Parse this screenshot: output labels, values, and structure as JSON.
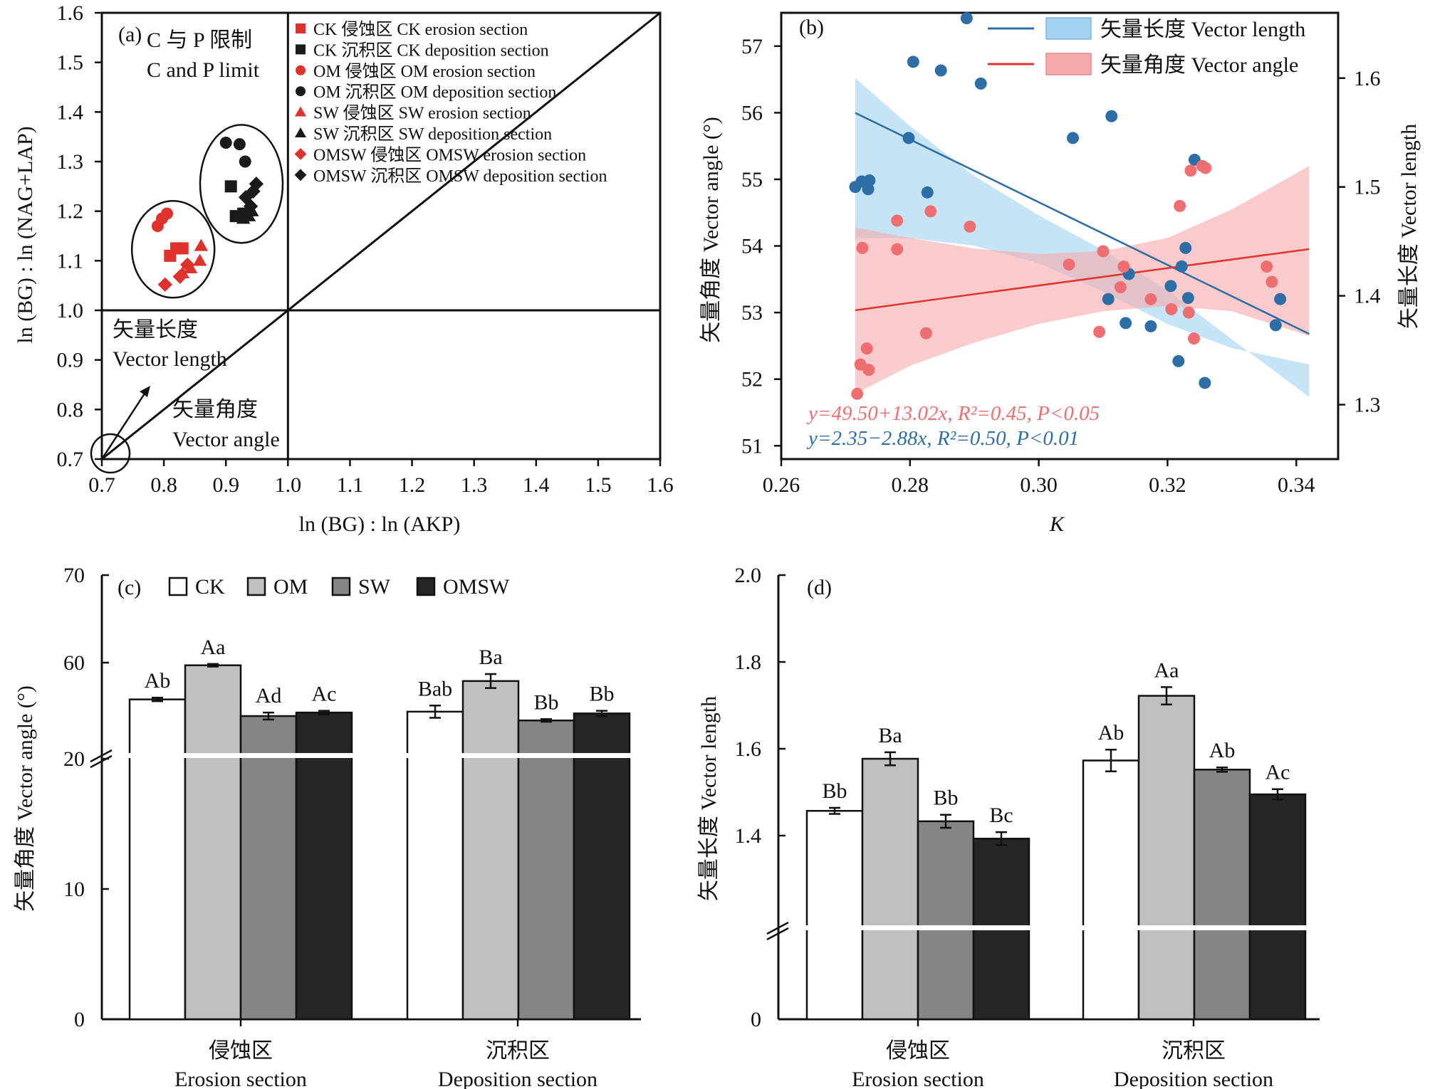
{
  "panels": [
    {
      "id": "a",
      "label": "(a)",
      "xlabel": "ln (BG) : ln (AKP)",
      "ylabel": "ln (BG) : ln (NAG+LAP)",
      "region_text": [
        "C 与 P 限制",
        "C and P limit"
      ],
      "annotations": {
        "vector_length": [
          "矢量长度",
          "Vector length"
        ],
        "vector_angle": [
          "矢量角度",
          "Vector angle"
        ]
      }
    },
    {
      "id": "b",
      "label": "(b)",
      "xlabel": "K",
      "ylabel_left": "矢量角度 Vector angle (°)",
      "ylabel_right": "矢量长度 Vector length"
    },
    {
      "id": "c",
      "label": "(c)",
      "ylabel": "矢量角度 Vector angle (°)",
      "groups": [
        [
          "侵蚀区",
          "Erosion section"
        ],
        [
          "沉积区",
          "Deposition section"
        ]
      ]
    },
    {
      "id": "d",
      "label": "(d)",
      "ylabel": "矢量长度 Vector length",
      "groups": [
        [
          "侵蚀区",
          "Erosion section"
        ],
        [
          "沉积区",
          "Deposition section"
        ]
      ]
    }
  ],
  "colors": {
    "red": "#e0322d",
    "black": "#1a1a1a",
    "blue": "#2e6ea6",
    "blue_band": "#9fd3f0",
    "salmon": "#ef6e72",
    "salmon_band": "#f5a9ab",
    "CK": "#ffffff",
    "OM": "#c0c0c2",
    "SW": "#858588",
    "OMSW": "#262628"
  },
  "chart_data": [
    {
      "panel": "a",
      "type": "scatter",
      "xlim": [
        0.7,
        1.6
      ],
      "ylim": [
        0.7,
        1.6
      ],
      "xticks": [
        0.7,
        0.8,
        0.9,
        1.0,
        1.1,
        1.2,
        1.3,
        1.4,
        1.5,
        1.6
      ],
      "yticks": [
        0.7,
        0.8,
        0.9,
        1.0,
        1.1,
        1.2,
        1.3,
        1.4,
        1.5,
        1.6
      ],
      "reference_lines": {
        "x": 1.0,
        "y": 1.0,
        "diagonal": true
      },
      "legend": [
        "CK 侵蚀区 CK erosion section",
        "CK 沉积区 CK deposition section",
        "OM 侵蚀区 OM erosion section",
        "OM 沉积区 OM deposition section",
        "SW 侵蚀区 SW erosion section",
        "SW 沉积区 SW deposition section",
        "OMSW 侵蚀区 OMSW erosion section",
        "OMSW 沉积区 OMSW deposition section"
      ],
      "series": [
        {
          "name": "CK 侵蚀区 CK erosion section",
          "marker": "square",
          "color": "red",
          "points": [
            [
              0.81,
              1.11
            ],
            [
              0.82,
              1.125
            ],
            [
              0.83,
              1.125
            ]
          ]
        },
        {
          "name": "CK 沉积区 CK deposition section",
          "marker": "square",
          "color": "black",
          "points": [
            [
              0.908,
              1.25
            ],
            [
              0.916,
              1.19
            ],
            [
              0.928,
              1.195
            ]
          ]
        },
        {
          "name": "OM 侵蚀区 OM erosion section",
          "marker": "circle",
          "color": "red",
          "points": [
            [
              0.79,
              1.17
            ],
            [
              0.797,
              1.185
            ],
            [
              0.805,
              1.195
            ]
          ]
        },
        {
          "name": "OM 沉积区 OM deposition section",
          "marker": "circle",
          "color": "black",
          "points": [
            [
              0.9,
              1.338
            ],
            [
              0.922,
              1.335
            ],
            [
              0.931,
              1.3
            ]
          ]
        },
        {
          "name": "SW 侵蚀区 SW erosion section",
          "marker": "triangle",
          "color": "red",
          "points": [
            [
              0.83,
              1.075
            ],
            [
              0.843,
              1.085
            ],
            [
              0.858,
              1.1
            ],
            [
              0.86,
              1.13
            ]
          ]
        },
        {
          "name": "SW 沉积区 SW deposition section",
          "marker": "triangle",
          "color": "black",
          "points": [
            [
              0.928,
              1.185
            ],
            [
              0.937,
              1.19
            ],
            [
              0.942,
              1.2
            ]
          ]
        },
        {
          "name": "OMSW 侵蚀区 OMSW erosion section",
          "marker": "diamond",
          "color": "red",
          "points": [
            [
              0.802,
              1.052
            ],
            [
              0.826,
              1.068
            ],
            [
              0.838,
              1.092
            ]
          ]
        },
        {
          "name": "OMSW 沉积区 OMSW deposition section",
          "marker": "diamond",
          "color": "black",
          "points": [
            [
              0.932,
              1.228
            ],
            [
              0.94,
              1.21
            ],
            [
              0.944,
              1.24
            ],
            [
              0.949,
              1.255
            ]
          ]
        }
      ]
    },
    {
      "panel": "b",
      "type": "scatter",
      "xlim": [
        0.26,
        0.345
      ],
      "xticks": [
        0.26,
        0.28,
        0.3,
        0.32,
        0.34
      ],
      "ylim_left": [
        50.8,
        57.5
      ],
      "yticks_left": [
        51,
        52,
        53,
        54,
        55,
        56,
        57
      ],
      "ylim_right": [
        1.25,
        1.66
      ],
      "yticks_right": [
        1.3,
        1.4,
        1.5,
        1.6
      ],
      "legend": [
        "矢量长度 Vector length",
        "矢量角度 Vector angle"
      ],
      "equations": [
        {
          "text": "y=49.50+13.02x, R²=0.45, P<0.05",
          "color": "salmon"
        },
        {
          "text": "y=2.35−2.88x, R²=0.50, P<0.01",
          "color": "blue"
        }
      ],
      "series": [
        {
          "name": "矢量长度 Vector length",
          "axis": "right",
          "color": "blue",
          "fit": {
            "intercept": 2.35,
            "slope": -2.88
          },
          "ci_band": [
            [
              0.2715,
              1.6
            ],
            [
              0.28,
              1.556
            ],
            [
              0.29,
              1.51
            ],
            [
              0.3,
              1.474
            ],
            [
              0.31,
              1.442
            ],
            [
              0.32,
              1.405
            ],
            [
              0.33,
              1.36
            ],
            [
              0.342,
              1.307
            ]
          ],
          "ci_band_low": [
            [
              0.2715,
              1.453
            ],
            [
              0.28,
              1.453
            ],
            [
              0.29,
              1.446
            ],
            [
              0.3,
              1.43
            ],
            [
              0.31,
              1.404
            ],
            [
              0.32,
              1.374
            ],
            [
              0.33,
              1.352
            ],
            [
              0.342,
              1.337
            ]
          ],
          "points": [
            [
              0.2715,
              1.5
            ],
            [
              0.2725,
              1.505
            ],
            [
              0.2735,
              1.498
            ],
            [
              0.2737,
              1.506
            ],
            [
              0.2798,
              1.545
            ],
            [
              0.2805,
              1.615
            ],
            [
              0.2827,
              1.495
            ],
            [
              0.2848,
              1.607
            ],
            [
              0.2888,
              1.655
            ],
            [
              0.291,
              1.595
            ],
            [
              0.3053,
              1.545
            ],
            [
              0.3108,
              1.397
            ],
            [
              0.3113,
              1.565
            ],
            [
              0.3135,
              1.375
            ],
            [
              0.314,
              1.42
            ],
            [
              0.3174,
              1.372
            ],
            [
              0.3205,
              1.409
            ],
            [
              0.3217,
              1.34
            ],
            [
              0.3222,
              1.427
            ],
            [
              0.3228,
              1.444
            ],
            [
              0.3232,
              1.398
            ],
            [
              0.3242,
              1.525
            ],
            [
              0.3258,
              1.32
            ],
            [
              0.3368,
              1.373
            ],
            [
              0.3375,
              1.397
            ]
          ]
        },
        {
          "name": "矢量角度 Vector angle",
          "axis": "left",
          "color": "salmon",
          "fit": {
            "intercept": 49.5,
            "slope": 13.02
          },
          "ci_band": [
            [
              0.2715,
              54.28
            ],
            [
              0.28,
              54.12
            ],
            [
              0.29,
              53.96
            ],
            [
              0.3,
              53.88
            ],
            [
              0.31,
              53.92
            ],
            [
              0.32,
              54.12
            ],
            [
              0.33,
              54.55
            ],
            [
              0.342,
              55.2
            ]
          ],
          "ci_band_low": [
            [
              0.2715,
              51.78
            ],
            [
              0.28,
              52.2
            ],
            [
              0.29,
              52.55
            ],
            [
              0.3,
              52.83
            ],
            [
              0.31,
              53.02
            ],
            [
              0.32,
              53.1
            ],
            [
              0.33,
              53.02
            ],
            [
              0.342,
              52.65
            ]
          ],
          "points": [
            [
              0.2718,
              51.78
            ],
            [
              0.2723,
              52.22
            ],
            [
              0.2726,
              53.97
            ],
            [
              0.2733,
              52.46
            ],
            [
              0.2736,
              52.14
            ],
            [
              0.278,
              53.95
            ],
            [
              0.278,
              54.38
            ],
            [
              0.2825,
              52.69
            ],
            [
              0.2832,
              54.52
            ],
            [
              0.2893,
              54.29
            ],
            [
              0.3047,
              53.72
            ],
            [
              0.3094,
              52.71
            ],
            [
              0.31,
              53.92
            ],
            [
              0.3127,
              53.38
            ],
            [
              0.3132,
              53.69
            ],
            [
              0.3174,
              53.2
            ],
            [
              0.3206,
              53.05
            ],
            [
              0.3219,
              54.6
            ],
            [
              0.3233,
              53.0
            ],
            [
              0.3236,
              55.13
            ],
            [
              0.3241,
              52.61
            ],
            [
              0.3254,
              55.2
            ],
            [
              0.3259,
              55.17
            ],
            [
              0.3354,
              53.69
            ],
            [
              0.3362,
              53.46
            ]
          ]
        }
      ]
    },
    {
      "panel": "c",
      "type": "bar",
      "categories": [
        "侵蚀区 Erosion section",
        "沉积区 Deposition section"
      ],
      "ylim": [
        0,
        70
      ],
      "yticks": [
        0,
        10,
        20,
        60,
        70
      ],
      "axis_break": true,
      "legend": [
        "CK",
        "OM",
        "SW",
        "OMSW"
      ],
      "series": [
        {
          "name": "CK",
          "values": [
            55.8,
            54.4
          ],
          "errors": [
            0.2,
            0.7
          ],
          "labels": [
            "Ab",
            "Bab"
          ]
        },
        {
          "name": "OM",
          "values": [
            59.7,
            57.9
          ],
          "errors": [
            0.15,
            0.8
          ],
          "labels": [
            "Aa",
            "Ba"
          ]
        },
        {
          "name": "SW",
          "values": [
            53.9,
            53.4
          ],
          "errors": [
            0.4,
            0.15
          ],
          "labels": [
            "Ad",
            "Bb"
          ]
        },
        {
          "name": "OMSW",
          "values": [
            54.3,
            54.2
          ],
          "errors": [
            0.2,
            0.3
          ],
          "labels": [
            "Ac",
            "Bb"
          ]
        }
      ]
    },
    {
      "panel": "d",
      "type": "bar",
      "categories": [
        "侵蚀区 Erosion section",
        "沉积区 Deposition section"
      ],
      "ylim": [
        0,
        2.0
      ],
      "yticks": [
        0,
        1.4,
        1.6,
        1.8,
        2.0
      ],
      "axis_break": true,
      "series": [
        {
          "name": "CK",
          "values": [
            1.457,
            1.573
          ],
          "errors": [
            0.007,
            0.025
          ],
          "labels": [
            "Bb",
            "Ab"
          ]
        },
        {
          "name": "OM",
          "values": [
            1.577,
            1.722
          ],
          "errors": [
            0.015,
            0.02
          ],
          "labels": [
            "Ba",
            "Aa"
          ]
        },
        {
          "name": "SW",
          "values": [
            1.433,
            1.552
          ],
          "errors": [
            0.015,
            0.005
          ],
          "labels": [
            "Bb",
            "Ab"
          ]
        },
        {
          "name": "OMSW",
          "values": [
            1.393,
            1.495
          ],
          "errors": [
            0.015,
            0.012
          ],
          "labels": [
            "Bc",
            "Ac"
          ]
        }
      ]
    }
  ]
}
